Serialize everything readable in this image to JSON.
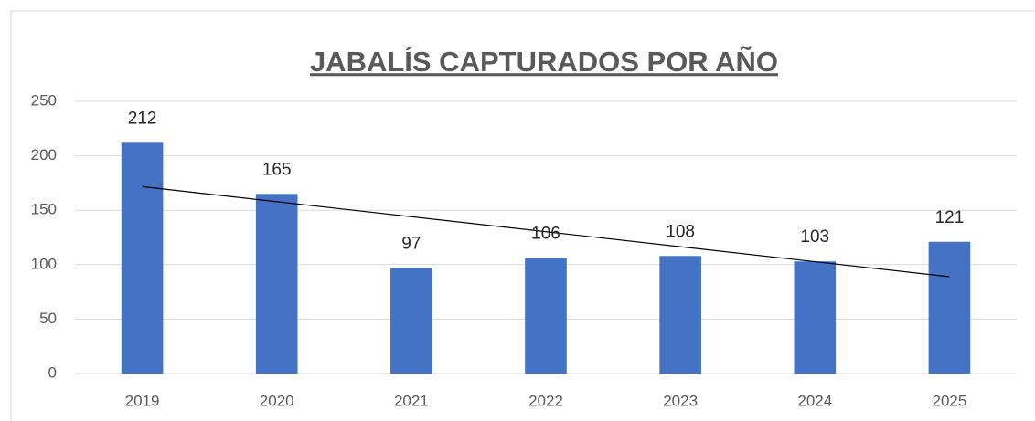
{
  "chart_data": {
    "type": "bar",
    "title": "JABALÍS CAPTURADOS POR AÑO",
    "categories": [
      "2019",
      "2020",
      "2021",
      "2022",
      "2023",
      "2024",
      "2025"
    ],
    "values": [
      212,
      165,
      97,
      106,
      108,
      103,
      121
    ],
    "color": "#4472c4",
    "ylim": [
      0,
      250
    ],
    "yticks": [
      0,
      50,
      100,
      150,
      200,
      250
    ],
    "grid": true,
    "trendline": "linear",
    "data_labels": true
  }
}
